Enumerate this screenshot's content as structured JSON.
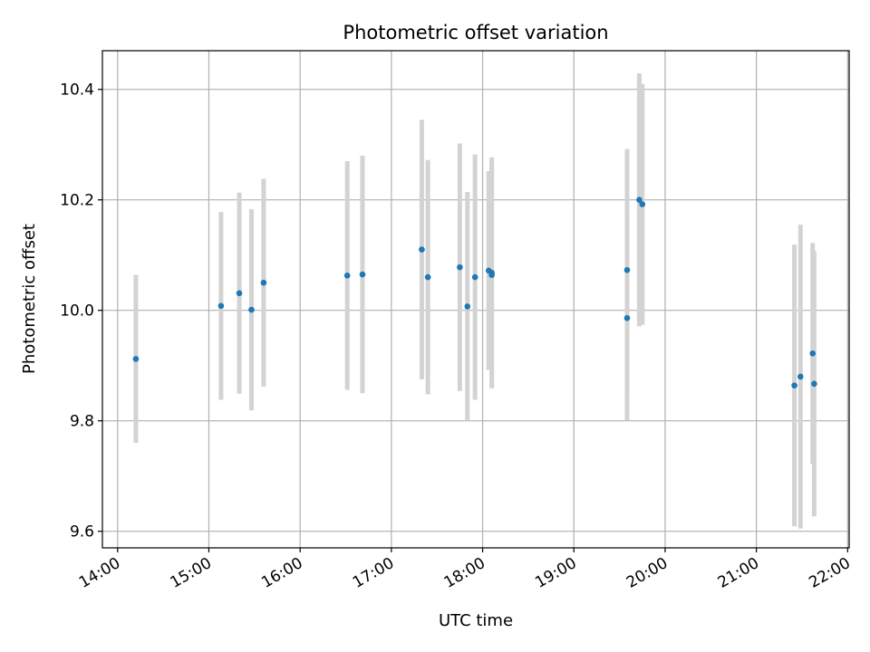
{
  "chart_data": {
    "type": "scatter",
    "title": "Photometric offset variation",
    "xlabel": "UTC time",
    "ylabel": "Photometric offset",
    "x_ticks": [
      "14:00",
      "15:00",
      "16:00",
      "17:00",
      "18:00",
      "19:00",
      "20:00",
      "21:00",
      "22:00"
    ],
    "y_ticks": [
      "9.6",
      "9.8",
      "10.0",
      "10.2",
      "10.4"
    ],
    "xlim": [
      "13:50",
      "22:01"
    ],
    "ylim": [
      9.57,
      10.47
    ],
    "grid": true,
    "point_color": "#1f77b4",
    "errorbar_color": "#d3d3d3",
    "points": [
      {
        "x": "14:12",
        "y": 9.912,
        "err": 0.152
      },
      {
        "x": "15:08",
        "y": 10.008,
        "err": 0.17
      },
      {
        "x": "15:20",
        "y": 10.031,
        "err": 0.182
      },
      {
        "x": "15:28",
        "y": 10.001,
        "err": 0.182
      },
      {
        "x": "15:36",
        "y": 10.05,
        "err": 0.188
      },
      {
        "x": "16:31",
        "y": 10.063,
        "err": 0.207
      },
      {
        "x": "16:41",
        "y": 10.065,
        "err": 0.215
      },
      {
        "x": "17:20",
        "y": 10.11,
        "err": 0.235
      },
      {
        "x": "17:24",
        "y": 10.06,
        "err": 0.212
      },
      {
        "x": "17:45",
        "y": 10.078,
        "err": 0.224
      },
      {
        "x": "17:50",
        "y": 10.007,
        "err": 0.207
      },
      {
        "x": "17:55",
        "y": 10.06,
        "err": 0.222
      },
      {
        "x": "18:04",
        "y": 10.072,
        "err": 0.18
      },
      {
        "x": "18:06",
        "y": 10.068,
        "err": 0.209
      },
      {
        "x": "18:06",
        "y": 10.064,
        "err": 0.202
      },
      {
        "x": "19:35",
        "y": 10.073,
        "err": 0.219
      },
      {
        "x": "19:35",
        "y": 9.986,
        "err": 0.185
      },
      {
        "x": "19:43",
        "y": 10.2,
        "err": 0.229
      },
      {
        "x": "19:45",
        "y": 10.192,
        "err": 0.218
      },
      {
        "x": "21:25",
        "y": 9.864,
        "err": 0.255
      },
      {
        "x": "21:29",
        "y": 9.88,
        "err": 0.275
      },
      {
        "x": "21:37",
        "y": 9.922,
        "err": 0.2
      },
      {
        "x": "21:38",
        "y": 9.867,
        "err": 0.24
      }
    ]
  }
}
